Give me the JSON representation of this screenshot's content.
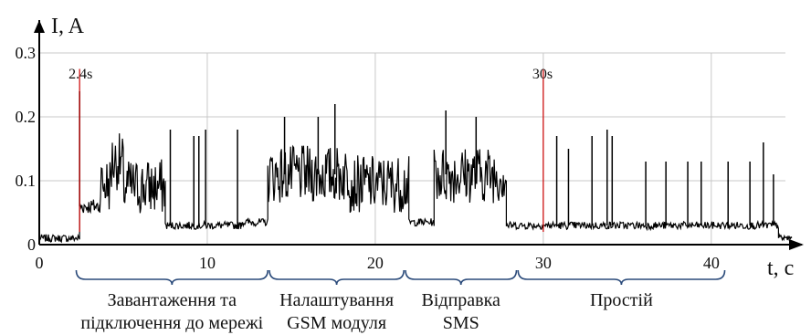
{
  "chart_data": {
    "type": "line",
    "ylabel": "I, A",
    "xlabel": "t, c",
    "xlim": [
      0,
      45.5
    ],
    "ylim": [
      0,
      0.3
    ],
    "x_ticks": [
      "0",
      "10",
      "20",
      "30",
      "40"
    ],
    "y_ticks": [
      "0",
      "0.1",
      "0.2",
      "0.3"
    ],
    "grid": true,
    "line_color": "#000000",
    "marker_color": "#cc0000",
    "markers": [
      {
        "label": "2.4s",
        "x": 2.4
      },
      {
        "label": "30s",
        "x": 30
      }
    ],
    "phases": [
      {
        "line1": "Завантаження та",
        "line2": "підключення до мережі",
        "start": 2.2,
        "end": 13.6
      },
      {
        "line1": "Налаштування",
        "line2": "GSM модуля",
        "start": 13.7,
        "end": 21.7
      },
      {
        "line1": "Відправка",
        "line2": "SMS",
        "start": 21.8,
        "end": 28.4
      },
      {
        "line1": "Простій",
        "line2": "",
        "start": 28.5,
        "end": 40.8
      }
    ],
    "levels": [
      {
        "from": 0,
        "to": 2.4,
        "value": 0.01
      },
      {
        "from": 2.4,
        "to": 3.6,
        "value": 0.06
      },
      {
        "from": 3.6,
        "to": 4.3,
        "value": 0.095
      },
      {
        "from": 4.3,
        "to": 5.0,
        "value": 0.13
      },
      {
        "from": 5.0,
        "to": 7.5,
        "value": 0.09
      },
      {
        "from": 7.5,
        "to": 12.0,
        "value": 0.03
      },
      {
        "from": 12.0,
        "to": 13.6,
        "value": 0.035
      },
      {
        "from": 13.6,
        "to": 18.5,
        "value": 0.11
      },
      {
        "from": 18.5,
        "to": 22.0,
        "value": 0.095
      },
      {
        "from": 22.0,
        "to": 23.5,
        "value": 0.035
      },
      {
        "from": 23.5,
        "to": 27.8,
        "value": 0.11
      },
      {
        "from": 27.8,
        "to": 44.0,
        "value": 0.03
      },
      {
        "from": 44.0,
        "to": 44.8,
        "value": 0.01
      }
    ],
    "spikes": [
      {
        "x": 2.4,
        "value": 0.24
      },
      {
        "x": 7.8,
        "value": 0.18
      },
      {
        "x": 9.2,
        "value": 0.17
      },
      {
        "x": 9.5,
        "value": 0.17
      },
      {
        "x": 9.9,
        "value": 0.18
      },
      {
        "x": 11.8,
        "value": 0.18
      },
      {
        "x": 14.6,
        "value": 0.2
      },
      {
        "x": 16.6,
        "value": 0.2
      },
      {
        "x": 17.6,
        "value": 0.22
      },
      {
        "x": 24.2,
        "value": 0.21
      },
      {
        "x": 26.0,
        "value": 0.2
      },
      {
        "x": 30.8,
        "value": 0.17
      },
      {
        "x": 31.5,
        "value": 0.15
      },
      {
        "x": 32.9,
        "value": 0.17
      },
      {
        "x": 33.8,
        "value": 0.18
      },
      {
        "x": 34.1,
        "value": 0.17
      },
      {
        "x": 36.1,
        "value": 0.13
      },
      {
        "x": 37.3,
        "value": 0.13
      },
      {
        "x": 38.6,
        "value": 0.13
      },
      {
        "x": 39.4,
        "value": 0.13
      },
      {
        "x": 41.0,
        "value": 0.13
      },
      {
        "x": 42.3,
        "value": 0.13
      },
      {
        "x": 43.1,
        "value": 0.16
      },
      {
        "x": 43.7,
        "value": 0.11
      }
    ]
  }
}
